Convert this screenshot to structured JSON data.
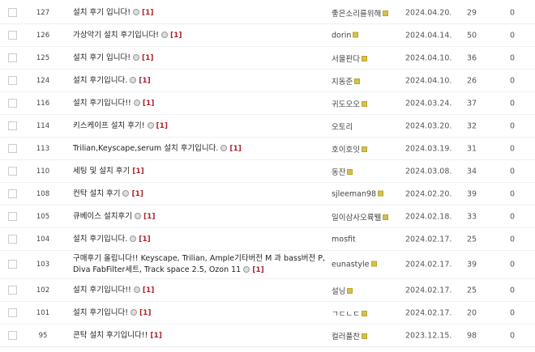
{
  "rows": [
    {
      "num": "127",
      "title": "설치 후기 입니다!",
      "image": true,
      "comments": "[1]",
      "author": "좋은소리를위해",
      "badge": true,
      "date": "2024.04.20.",
      "views": "29",
      "likes": "0"
    },
    {
      "num": "126",
      "title": "가상악기 설치 후기입니다!",
      "image": true,
      "comments": "[1]",
      "author": "dorin",
      "badge": true,
      "date": "2024.04.14.",
      "views": "50",
      "likes": "0"
    },
    {
      "num": "125",
      "title": "설치 후기 입니다!",
      "image": true,
      "comments": "[1]",
      "author": "서울판다",
      "badge": true,
      "date": "2024.04.10.",
      "views": "36",
      "likes": "0"
    },
    {
      "num": "124",
      "title": "설치 후기입니다.",
      "image": true,
      "comments": "[1]",
      "author": "지동준",
      "badge": true,
      "date": "2024.04.10.",
      "views": "26",
      "likes": "0"
    },
    {
      "num": "116",
      "title": "설치 후기입니다!!",
      "image": true,
      "comments": "[1]",
      "author": "귀도오오",
      "badge": true,
      "date": "2024.03.24.",
      "views": "37",
      "likes": "0"
    },
    {
      "num": "114",
      "title": "키스케이프 설치 후기!",
      "image": true,
      "comments": "[1]",
      "author": "오토리",
      "badge": false,
      "date": "2024.03.20.",
      "views": "32",
      "likes": "0"
    },
    {
      "num": "113",
      "title": "Trilian,Keyscape,serum 설치 후기입니다.",
      "image": true,
      "comments": "[1]",
      "author": "호이호잇",
      "badge": true,
      "date": "2024.03.19.",
      "views": "31",
      "likes": "0"
    },
    {
      "num": "110",
      "title": "세팅 및 설치 후기",
      "image": false,
      "comments": "[1]",
      "author": "동잔",
      "badge": true,
      "date": "2024.03.08.",
      "views": "34",
      "likes": "0"
    },
    {
      "num": "108",
      "title": "컨탁 설치 후기",
      "image": true,
      "comments": "[1]",
      "author": "sjleeman98",
      "badge": true,
      "date": "2024.02.20.",
      "views": "39",
      "likes": "0"
    },
    {
      "num": "105",
      "title": "큐베이스 설치후기",
      "image": true,
      "comments": "[1]",
      "author": "일이삼사오륙뛜",
      "badge": true,
      "date": "2024.02.18.",
      "views": "33",
      "likes": "0"
    },
    {
      "num": "104",
      "title": "설치 후기입니다.",
      "image": true,
      "comments": "[1]",
      "author": "mosfit",
      "badge": false,
      "date": "2024.02.17.",
      "views": "25",
      "likes": "0"
    },
    {
      "num": "103",
      "title": "구매후기 올립니다!! Keyscape, Trilian, Ample기타버전 M 과 bass버전 P, Diva FabFilter세트, Track space 2.5, Ozon 11",
      "image": true,
      "comments": "[1]",
      "author": "eunastyle",
      "badge": true,
      "date": "2024.02.17.",
      "views": "39",
      "likes": "0",
      "tall": true
    },
    {
      "num": "102",
      "title": "설치 후기입니다!!",
      "image": true,
      "comments": "[1]",
      "author": "설닝",
      "badge": true,
      "date": "2024.02.17.",
      "views": "25",
      "likes": "0"
    },
    {
      "num": "101",
      "title": "설치 후기입니다!",
      "image": true,
      "comments": "[1]",
      "author": "ㄱㄷㄴㄷ",
      "badge": true,
      "date": "2024.02.17.",
      "views": "20",
      "likes": "0"
    },
    {
      "num": "95",
      "title": "콘탁 설치 후기입니다!!",
      "image": false,
      "comments": "[1]",
      "author": "컬러풀찬",
      "badge": true,
      "date": "2023.12.15.",
      "views": "98",
      "likes": "0"
    }
  ]
}
